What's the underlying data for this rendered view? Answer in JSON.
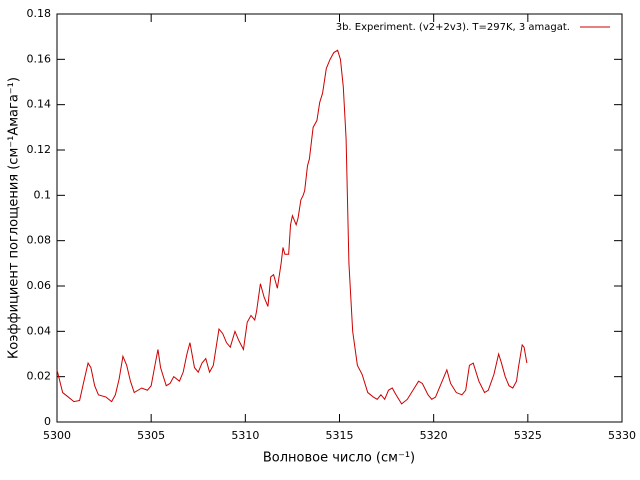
{
  "chart_data": {
    "type": "line",
    "x_label": "Волновое число (см⁻¹)",
    "y_label": "Коэффициент поглощения (см⁻¹Амага⁻¹)",
    "legend": "top-right",
    "xlim": [
      5300,
      5330
    ],
    "xticks": [
      5300,
      5305,
      5310,
      5315,
      5320,
      5325,
      5330
    ],
    "ylim": [
      0,
      0.18
    ],
    "yticks": [
      0,
      0.02,
      0.04,
      0.06,
      0.08,
      0.1,
      0.12,
      0.14,
      0.16,
      0.18
    ],
    "x": [
      5300,
      5300.3,
      5300.6,
      5300.9,
      5301.2,
      5301.4,
      5301.65,
      5301.8,
      5302.0,
      5302.2,
      5302.6,
      5302.9,
      5303.1,
      5303.3,
      5303.5,
      5303.7,
      5303.9,
      5304.1,
      5304.5,
      5304.8,
      5305.0,
      5305.2,
      5305.36,
      5305.5,
      5305.8,
      5306.0,
      5306.2,
      5306.5,
      5306.7,
      5306.9,
      5307.06,
      5307.3,
      5307.5,
      5307.7,
      5307.9,
      5308.1,
      5308.3,
      5308.6,
      5308.8,
      5309.0,
      5309.2,
      5309.45,
      5309.65,
      5309.9,
      5310.1,
      5310.3,
      5310.5,
      5310.6,
      5310.8,
      5311.0,
      5311.2,
      5311.35,
      5311.5,
      5311.7,
      5311.9,
      5312.0,
      5312.1,
      5312.3,
      5312.4,
      5312.5,
      5312.7,
      5312.8,
      5312.95,
      5313.07,
      5313.15,
      5313.3,
      5313.4,
      5313.6,
      5313.8,
      5313.95,
      5314.1,
      5314.3,
      5314.5,
      5314.7,
      5314.9,
      5315.05,
      5315.2,
      5315.35,
      5315.5,
      5315.7,
      5315.95,
      5316.2,
      5316.5,
      5316.8,
      5317.0,
      5317.2,
      5317.4,
      5317.6,
      5317.8,
      5318.0,
      5318.3,
      5318.6,
      5318.9,
      5319.2,
      5319.4,
      5319.7,
      5319.9,
      5320.1,
      5320.4,
      5320.7,
      5320.9,
      5321.2,
      5321.5,
      5321.7,
      5321.9,
      5322.1,
      5322.4,
      5322.7,
      5322.9,
      5323.2,
      5323.45,
      5323.6,
      5323.8,
      5324.0,
      5324.2,
      5324.4,
      5324.5,
      5324.7,
      5324.8,
      5324.95
    ],
    "series": [
      {
        "name": "3b. Experiment. (v2+2v3). T=297K, 3 amagat.",
        "color": "#cc0000",
        "values": [
          0.023,
          0.013,
          0.011,
          0.009,
          0.0095,
          0.017,
          0.026,
          0.024,
          0.016,
          0.012,
          0.011,
          0.009,
          0.012,
          0.019,
          0.029,
          0.025,
          0.018,
          0.013,
          0.015,
          0.014,
          0.016,
          0.025,
          0.032,
          0.024,
          0.016,
          0.017,
          0.02,
          0.018,
          0.022,
          0.03,
          0.035,
          0.024,
          0.022,
          0.026,
          0.028,
          0.022,
          0.025,
          0.041,
          0.039,
          0.035,
          0.033,
          0.04,
          0.036,
          0.032,
          0.044,
          0.047,
          0.045,
          0.049,
          0.061,
          0.055,
          0.051,
          0.064,
          0.065,
          0.059,
          0.07,
          0.077,
          0.074,
          0.074,
          0.087,
          0.091,
          0.087,
          0.09,
          0.098,
          0.1,
          0.102,
          0.113,
          0.116,
          0.13,
          0.133,
          0.141,
          0.145,
          0.156,
          0.16,
          0.163,
          0.164,
          0.16,
          0.148,
          0.125,
          0.07,
          0.04,
          0.025,
          0.021,
          0.013,
          0.011,
          0.01,
          0.012,
          0.01,
          0.014,
          0.015,
          0.012,
          0.008,
          0.01,
          0.014,
          0.018,
          0.017,
          0.012,
          0.01,
          0.011,
          0.017,
          0.023,
          0.017,
          0.013,
          0.012,
          0.014,
          0.025,
          0.026,
          0.018,
          0.013,
          0.014,
          0.021,
          0.03,
          0.026,
          0.02,
          0.016,
          0.015,
          0.018,
          0.024,
          0.034,
          0.033,
          0.026
        ]
      }
    ]
  }
}
